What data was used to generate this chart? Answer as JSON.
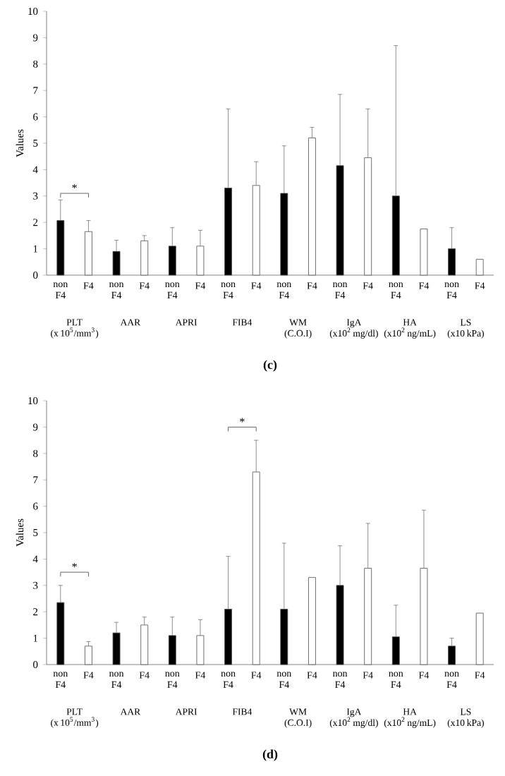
{
  "chart_data": [
    {
      "type": "bar",
      "title": "(c)",
      "ylabel": "Values",
      "ylim": [
        0,
        10
      ],
      "yticks": [
        0,
        1,
        2,
        3,
        4,
        5,
        6,
        7,
        8,
        9,
        10
      ],
      "categories": [
        "PLT (x 10$^{5}$/mm$^{3}$)",
        "AAR",
        "APRI",
        "FIB4",
        "WM (C.O.I)",
        "IgA (x10$^{2}$ mg/dl)",
        "HA (x10$^{2}$ ng/mL)",
        "LS (x10 kPa)"
      ],
      "series": [
        {
          "name": "non F4",
          "color": "#000000",
          "values": [
            2.07,
            0.9,
            1.1,
            3.3,
            3.1,
            4.15,
            3.0,
            1.0
          ],
          "errors": [
            [
              2.07,
              2.85
            ],
            [
              0.9,
              1.32
            ],
            [
              1.1,
              1.8
            ],
            [
              3.3,
              6.3
            ],
            [
              3.1,
              4.9
            ],
            [
              4.15,
              6.85
            ],
            [
              3.0,
              8.7
            ],
            [
              1.0,
              1.8
            ]
          ]
        },
        {
          "name": "F4",
          "color": "#ffffff",
          "values": [
            1.65,
            1.3,
            1.1,
            3.4,
            5.2,
            4.45,
            1.75,
            0.6
          ],
          "errors": [
            [
              1.65,
              2.07
            ],
            [
              1.3,
              1.5
            ],
            [
              1.1,
              1.7
            ],
            [
              3.4,
              4.3
            ],
            [
              5.2,
              5.6
            ],
            [
              4.45,
              6.3
            ],
            null,
            null
          ]
        }
      ],
      "annotations": [
        "*"
      ]
    },
    {
      "type": "bar",
      "title": "(d)",
      "ylabel": "Values",
      "ylim": [
        0,
        10
      ],
      "yticks": [
        0,
        1,
        2,
        3,
        4,
        5,
        6,
        7,
        8,
        9,
        10
      ],
      "categories": [
        "PLT (x 10$^{5}$/mm$^{3}$)",
        "AAR",
        "APRI",
        "FIB4",
        "WM (C.O.I)",
        "IgA (x10$^{2}$ mg/dl)",
        "HA (x10$^{2}$ ng/mL)",
        "LS (x10 kPa)"
      ],
      "series": [
        {
          "name": "non F4",
          "color": "#000000",
          "values": [
            2.35,
            1.2,
            1.1,
            2.1,
            2.1,
            3.0,
            1.05,
            0.7
          ],
          "errors": [
            [
              2.35,
              3.0
            ],
            [
              1.2,
              1.6
            ],
            [
              1.1,
              1.8
            ],
            [
              2.1,
              4.1
            ],
            [
              2.1,
              4.6
            ],
            [
              3.0,
              4.5
            ],
            [
              1.05,
              2.25
            ],
            [
              0.7,
              1.0
            ]
          ]
        },
        {
          "name": "F4",
          "color": "#ffffff",
          "values": [
            0.7,
            1.5,
            1.1,
            7.3,
            3.3,
            3.65,
            3.65,
            1.95
          ],
          "errors": [
            [
              0.7,
              0.87
            ],
            [
              1.5,
              1.8
            ],
            [
              1.1,
              1.7
            ],
            [
              7.3,
              8.5
            ],
            null,
            [
              3.65,
              5.35
            ],
            [
              3.65,
              5.85
            ],
            null
          ]
        }
      ],
      "annotations": [
        "*",
        "*"
      ]
    }
  ]
}
